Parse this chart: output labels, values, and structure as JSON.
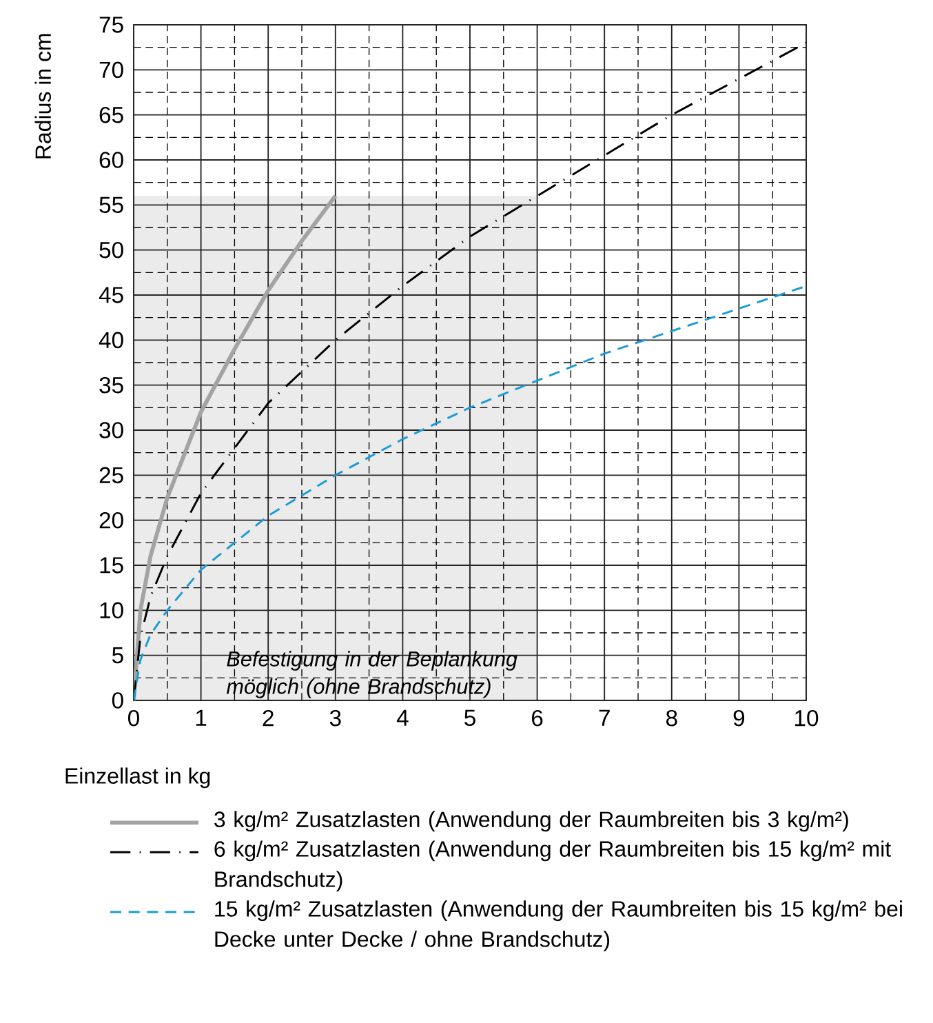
{
  "chart_data": {
    "type": "line",
    "xlabel": "Einzellast in kg",
    "ylabel": "Radius in cm",
    "xlim": [
      0,
      10
    ],
    "ylim": [
      0,
      75
    ],
    "xticks": [
      0,
      1,
      2,
      3,
      4,
      5,
      6,
      7,
      8,
      9,
      10
    ],
    "yticks": [
      0,
      5,
      10,
      15,
      20,
      25,
      30,
      35,
      40,
      45,
      50,
      55,
      60,
      65,
      70,
      75
    ],
    "grid": true,
    "legend": "bottom",
    "annotations": [
      {
        "text": "Befestigung in der Beplankung möglich (ohne Brandschutz)",
        "x": 6,
        "y": 0
      }
    ],
    "series": [
      {
        "type": "area",
        "color": "#ebebeb",
        "x": [
          0,
          6
        ],
        "values": [
          56,
          56
        ]
      },
      {
        "name": "3 kg/m² Zusatzlasten (Anwendung der Raumbreiten bis 3 kg/m²)",
        "color": "#a3a3a3",
        "line_style": "solid",
        "x": [
          0,
          0.1,
          0.25,
          0.5,
          1,
          1.5,
          2,
          2.5,
          3
        ],
        "values": [
          0,
          10,
          16,
          22.5,
          32,
          39,
          45.5,
          51,
          56
        ]
      },
      {
        "name": "6 kg/m² Zusatzlasten (Anwendung der Raumbreiten bis 15 kg/m² mit Brandschutz)",
        "color": "#000000",
        "line_style": "dashdot",
        "x": [
          0,
          0.1,
          0.25,
          0.5,
          1,
          2,
          3,
          4,
          5,
          6,
          7,
          8,
          9,
          10
        ],
        "values": [
          0,
          7,
          11.5,
          16,
          23,
          33,
          40,
          46,
          51.5,
          56,
          60.5,
          65,
          69,
          73
        ]
      },
      {
        "name": "15 kg/m² Zusatzlasten (Anwendung der Raumbreiten bis 15 kg/m² bei Decke unter Decke / ohne Brandschutz)",
        "color": "#1a9bd7",
        "line_style": "dashed",
        "x": [
          0,
          0.1,
          0.25,
          0.5,
          1,
          2,
          3,
          4,
          5,
          6,
          7,
          8,
          9,
          10
        ],
        "values": [
          0,
          4.5,
          7.3,
          10,
          14.5,
          20.5,
          25,
          29,
          32.5,
          35.5,
          38.5,
          41,
          43.5,
          46
        ]
      }
    ]
  }
}
